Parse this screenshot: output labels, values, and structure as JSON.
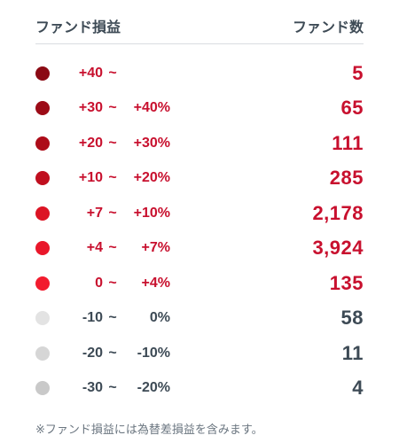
{
  "header": {
    "left_label": "ファンド損益",
    "right_label": "ファンド数"
  },
  "rows": [
    {
      "lo": "+40",
      "sep": "~",
      "hi": "",
      "count": "5",
      "dot_color": "#8b0a14",
      "text_color": "#c8102e",
      "count_color": "#c8102e"
    },
    {
      "lo": "+30",
      "sep": "~",
      "hi": "+40%",
      "count": "65",
      "dot_color": "#9c0b17",
      "text_color": "#c8102e",
      "count_color": "#c8102e"
    },
    {
      "lo": "+20",
      "sep": "~",
      "hi": "+30%",
      "count": "111",
      "dot_color": "#ad0c19",
      "text_color": "#c8102e",
      "count_color": "#c8102e"
    },
    {
      "lo": "+10",
      "sep": "~",
      "hi": "+20%",
      "count": "285",
      "dot_color": "#c00f1f",
      "text_color": "#c8102e",
      "count_color": "#c8102e"
    },
    {
      "lo": "+7",
      "sep": "~",
      "hi": "+10%",
      "count": "2,178",
      "dot_color": "#dc1424",
      "text_color": "#c8102e",
      "count_color": "#c8102e"
    },
    {
      "lo": "+4",
      "sep": "~",
      "hi": "+7%",
      "count": "3,924",
      "dot_color": "#e9172a",
      "text_color": "#c8102e",
      "count_color": "#c8102e"
    },
    {
      "lo": "0",
      "sep": "~",
      "hi": "+4%",
      "count": "135",
      "dot_color": "#f21c2e",
      "text_color": "#c8102e",
      "count_color": "#c8102e"
    },
    {
      "lo": "-10",
      "sep": "~",
      "hi": "0%",
      "count": "58",
      "dot_color": "#e3e3e3",
      "text_color": "#3d4a55",
      "count_color": "#3d4a55"
    },
    {
      "lo": "-20",
      "sep": "~",
      "hi": "-10%",
      "count": "11",
      "dot_color": "#d6d6d6",
      "text_color": "#3d4a55",
      "count_color": "#3d4a55"
    },
    {
      "lo": "-30",
      "sep": "~",
      "hi": "-20%",
      "count": "4",
      "dot_color": "#c9c9c9",
      "text_color": "#3d4a55",
      "count_color": "#3d4a55"
    }
  ],
  "footnote": "※ファンド損益には為替差損益を含みます。"
}
